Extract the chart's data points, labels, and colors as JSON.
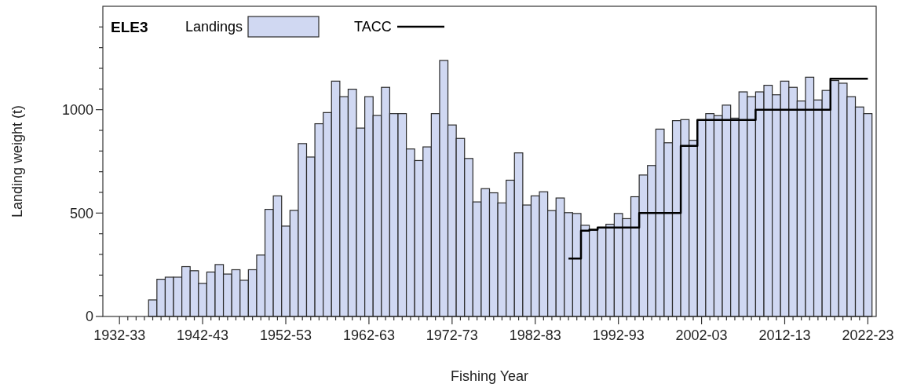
{
  "chart_data": {
    "type": "bar",
    "title": "ELE3",
    "xlabel": "Fishing Year",
    "ylabel": "Landing weight (t)",
    "categories": [
      "1932-33",
      null,
      null,
      null,
      null,
      null,
      null,
      null,
      null,
      null,
      "1942-43",
      null,
      null,
      null,
      null,
      null,
      null,
      null,
      null,
      null,
      "1952-53",
      null,
      null,
      null,
      null,
      null,
      null,
      null,
      null,
      null,
      "1962-63",
      null,
      null,
      null,
      null,
      null,
      null,
      null,
      null,
      null,
      "1972-73",
      null,
      null,
      null,
      null,
      null,
      null,
      null,
      null,
      null,
      "1982-83",
      null,
      null,
      null,
      null,
      null,
      null,
      null,
      null,
      null,
      "1992-93",
      null,
      null,
      null,
      null,
      null,
      null,
      null,
      null,
      null,
      "2002-03",
      null,
      null,
      null,
      null,
      null,
      null,
      null,
      null,
      null,
      "2012-13",
      null,
      null,
      null,
      null,
      null,
      null,
      null,
      null,
      null,
      "2022-23"
    ],
    "series": [
      {
        "name": "Landings",
        "color": "#d0d8f2",
        "values": [
          null,
          null,
          null,
          null,
          80,
          180,
          190,
          190,
          241,
          221,
          160,
          215,
          251,
          205,
          226,
          175,
          226,
          297,
          518,
          583,
          437,
          513,
          836,
          771,
          932,
          986,
          1138,
          1063,
          1099,
          911,
          1063,
          972,
          1108,
          981,
          981,
          810,
          754,
          820,
          981,
          1238,
          926,
          861,
          764,
          554,
          618,
          598,
          549,
          659,
          791,
          539,
          583,
          603,
          512,
          573,
          502,
          498,
          441,
          417,
          431,
          446,
          498,
          473,
          579,
          684,
          730,
          906,
          840,
          947,
          952,
          852,
          948,
          981,
          971,
          1022,
          959,
          1086,
          1063,
          1086,
          1118,
          1072,
          1138,
          1108,
          1042,
          1157,
          1047,
          1093,
          1141,
          1128,
          1063,
          1013,
          981
        ]
      },
      {
        "name": "TACC",
        "type": "step",
        "color": "#000000",
        "values": [
          null,
          null,
          null,
          null,
          null,
          null,
          null,
          null,
          null,
          null,
          null,
          null,
          null,
          null,
          null,
          null,
          null,
          null,
          null,
          null,
          null,
          null,
          null,
          null,
          null,
          null,
          null,
          null,
          null,
          null,
          null,
          null,
          null,
          null,
          null,
          null,
          null,
          null,
          null,
          null,
          null,
          null,
          null,
          null,
          null,
          null,
          null,
          null,
          null,
          null,
          null,
          null,
          null,
          null,
          280,
          280,
          415,
          420,
          430,
          430,
          430,
          430,
          430,
          500,
          500,
          500,
          500,
          500,
          825,
          825,
          950,
          950,
          950,
          950,
          950,
          950,
          950,
          1000,
          1000,
          1000,
          1000,
          1000,
          1000,
          1000,
          1000,
          1000,
          1150,
          1150,
          1150,
          1150,
          1150
        ]
      }
    ],
    "ylim": [
      0,
      1500
    ],
    "yticks": [
      0,
      {
        "value": 100,
        "label": null
      },
      {
        "value": 200,
        "label": null
      },
      {
        "value": 300,
        "label": null
      },
      {
        "value": 400,
        "label": null
      },
      500,
      {
        "value": 600,
        "label": null
      },
      {
        "value": 700,
        "label": null
      },
      {
        "value": 800,
        "label": null
      },
      {
        "value": 900,
        "label": null
      },
      1000,
      {
        "value": 1100,
        "label": null
      },
      {
        "value": 1200,
        "label": null
      },
      {
        "value": 1300,
        "label": null
      },
      {
        "value": 1400,
        "label": null
      }
    ],
    "grid": false,
    "legend": "top left"
  }
}
